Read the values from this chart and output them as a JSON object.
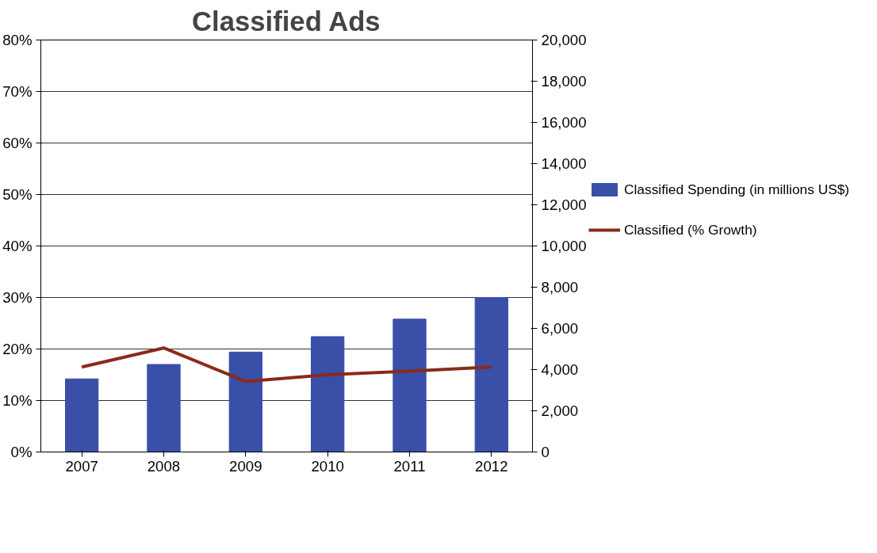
{
  "chart_data": {
    "type": "bar",
    "title": "Classified Ads",
    "categories": [
      "2007",
      "2008",
      "2009",
      "2010",
      "2011",
      "2012"
    ],
    "series": [
      {
        "name": "Classified Spending (in millions US$)",
        "axis": "y2",
        "color": "#3a4fa8",
        "values": [
          3550,
          4250,
          4850,
          5600,
          6450,
          7500
        ]
      },
      {
        "name": "Classified (% Growth)",
        "type": "line",
        "axis": "y",
        "color": "#8b2a1a",
        "values": [
          16.5,
          20.2,
          13.7,
          15.0,
          15.7,
          16.5
        ]
      }
    ],
    "ylim": [
      0,
      80
    ],
    "yticks": [
      {
        "value": 0,
        "label": "0%"
      },
      {
        "value": 10,
        "label": "10%"
      },
      {
        "value": 20,
        "label": "20%"
      },
      {
        "value": 30,
        "label": "30%"
      },
      {
        "value": 40,
        "label": "40%"
      },
      {
        "value": 50,
        "label": "50%"
      },
      {
        "value": 60,
        "label": "60%"
      },
      {
        "value": 70,
        "label": "70%"
      },
      {
        "value": 80,
        "label": "80%"
      }
    ],
    "y2lim": [
      0,
      20000
    ],
    "y2ticks": [
      0,
      {
        "value": 2000,
        "label": "2,000"
      },
      {
        "value": 4000,
        "label": "4,000"
      },
      {
        "value": 6000,
        "label": "6,000"
      },
      {
        "value": 8000,
        "label": "8,000"
      },
      {
        "value": 10000,
        "label": "10,000"
      },
      {
        "value": 12000,
        "label": "12,000"
      },
      {
        "value": 14000,
        "label": "14,000"
      },
      {
        "value": 16000,
        "label": "16,000"
      },
      {
        "value": 18000,
        "label": "18,000"
      },
      {
        "value": 20000,
        "label": "20,000"
      }
    ],
    "grid": "y",
    "legend": "right",
    "marker": "none",
    "line_style": "solid"
  }
}
